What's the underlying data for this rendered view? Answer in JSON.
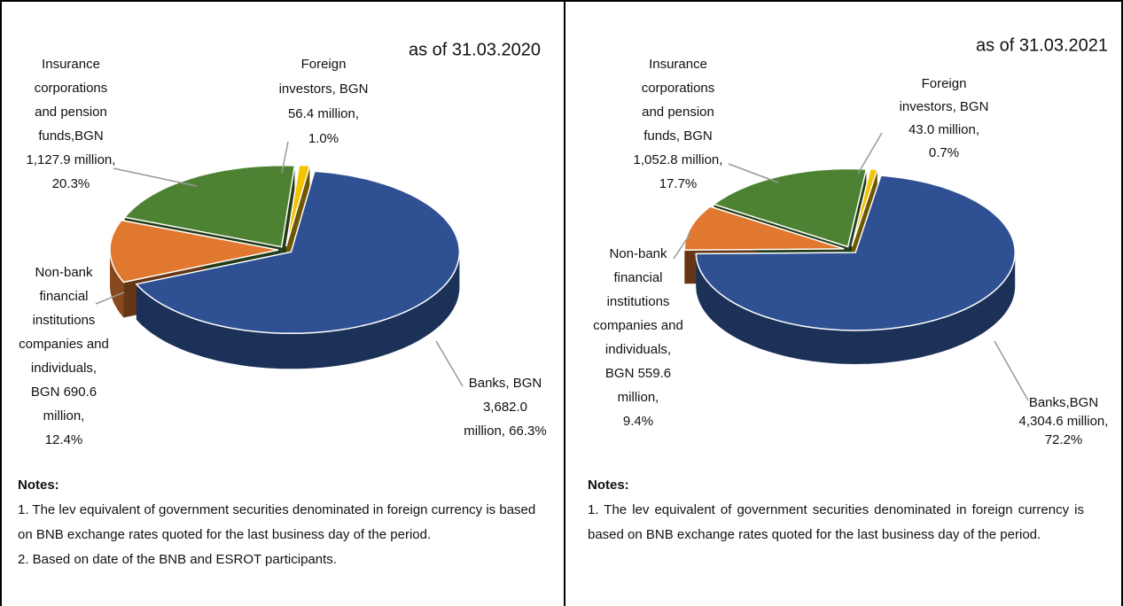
{
  "chart_data": [
    {
      "type": "pie",
      "title": "as of 31.03.2020",
      "values": [
        66.3,
        12.4,
        20.3,
        1.0
      ],
      "value_labels": [
        [
          "Banks, BGN",
          "3,682.0",
          "million, 66.3%"
        ],
        [
          "Non-bank",
          "financial",
          "institutions",
          "companies and",
          "individuals,",
          "BGN 690.6",
          "million,",
          "12.4%"
        ],
        [
          "Insurance",
          "corporations",
          "and pension",
          "funds,BGN",
          "1,127.9 million,",
          "20.3%"
        ],
        [
          "Foreign",
          "investors, BGN",
          "56.4 million,",
          "1.0%"
        ]
      ],
      "colors": [
        "#2f5193",
        "#e0782f",
        "#4e8233",
        "#f2c300"
      ]
    },
    {
      "type": "pie",
      "title": "as of 31.03.2021",
      "values": [
        72.2,
        9.4,
        17.7,
        0.7
      ],
      "value_labels": [
        [
          "Banks,BGN",
          "4,304.6 million,",
          "72.2%"
        ],
        [
          "Non-bank",
          "financial",
          "institutions",
          "companies and",
          "individuals,",
          "BGN 559.6",
          "million,",
          "9.4%"
        ],
        [
          "Insurance",
          "corporations",
          "and pension",
          "funds, BGN",
          "1,052.8 million,",
          "17.7%"
        ],
        [
          "Foreign",
          "investors, BGN",
          "43.0 million,",
          "0.7%"
        ]
      ],
      "colors": [
        "#2f5193",
        "#e0782f",
        "#4e8233",
        "#f2c300"
      ]
    }
  ],
  "notes": [
    {
      "title": "Notes:",
      "items": [
        "1. The lev equivalent of government securities denominated in foreign currency is based on BNB exchange rates quoted for the last business day of the period.",
        "2. Based on date of the BNB and ESROT participants."
      ]
    },
    {
      "title": "Notes:",
      "items": [
        "1. The lev equivalent of government securities denominated in foreign currency is based on BNB exchange rates quoted for the last business day of the period."
      ]
    }
  ]
}
